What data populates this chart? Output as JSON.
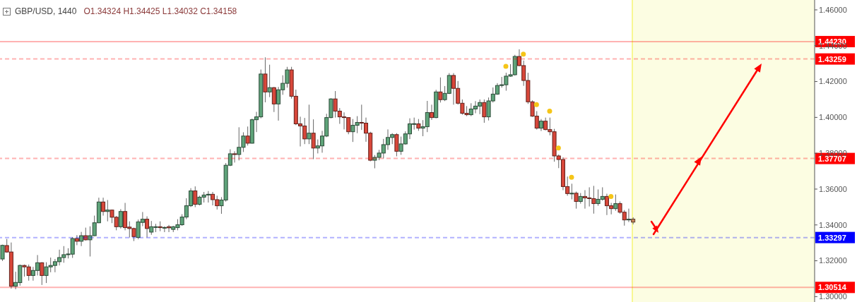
{
  "chart_data": {
    "type": "candlestick",
    "title": "GBP/USD, 1440",
    "subtitle": "O1.34324 H1.34425 L1.34032 C1.34158",
    "categories": [
      null,
      null,
      null,
      null,
      null,
      null,
      null,
      null,
      null,
      null,
      null,
      null,
      null,
      null,
      null,
      null,
      null,
      null,
      null,
      null,
      null,
      null,
      null,
      null,
      null,
      null,
      null,
      null,
      null,
      null,
      null,
      null,
      null,
      null,
      null,
      null,
      null,
      null,
      null,
      null,
      null,
      null,
      null,
      null,
      null,
      null,
      null,
      null,
      null,
      null,
      null,
      null,
      null,
      null,
      null,
      null,
      null,
      null,
      null,
      null,
      null,
      null,
      null,
      null,
      null,
      null,
      null,
      null,
      null,
      null,
      null,
      null,
      null,
      null,
      null,
      null,
      null,
      null,
      null,
      null,
      null,
      null,
      null,
      null,
      null,
      null,
      null,
      null,
      null,
      null,
      null,
      null,
      null,
      null,
      null,
      null,
      null,
      null,
      null,
      null,
      null,
      null,
      null,
      null,
      null,
      null,
      null,
      null,
      null,
      null,
      null,
      null,
      null,
      null,
      null,
      null,
      null,
      null,
      null,
      null,
      null,
      null,
      null,
      null,
      null,
      null,
      null,
      null,
      null,
      null,
      null,
      null,
      null,
      null,
      null,
      null,
      null,
      null,
      null,
      null,
      null,
      null,
      null,
      null,
      null,
      null,
      null,
      null,
      null,
      null,
      null,
      null,
      null,
      null,
      null,
      null,
      null,
      null,
      null,
      null,
      null,
      null,
      null,
      null,
      null,
      null,
      null,
      null,
      null,
      null,
      null,
      null,
      null,
      null,
      null,
      null,
      null,
      null,
      null,
      null,
      null,
      null,
      null,
      null,
      null,
      null
    ],
    "ohlc": [
      [
        1.321,
        1.329,
        1.3199,
        1.3286
      ],
      [
        1.3285,
        1.3322,
        1.3245,
        1.3249
      ],
      [
        1.3249,
        1.3302,
        1.3045,
        1.3058
      ],
      [
        1.3058,
        1.3139,
        1.3041,
        1.3079
      ],
      [
        1.3078,
        1.3179,
        1.3061,
        1.3174
      ],
      [
        1.3174,
        1.3179,
        1.3112,
        1.3166
      ],
      [
        1.3166,
        1.3179,
        1.3089,
        1.3118
      ],
      [
        1.3118,
        1.3166,
        1.3089,
        1.3146
      ],
      [
        1.3146,
        1.3232,
        1.3118,
        1.3189
      ],
      [
        1.3189,
        1.3192,
        1.3065,
        1.3118
      ],
      [
        1.3118,
        1.3192,
        1.3076,
        1.3166
      ],
      [
        1.3166,
        1.3218,
        1.3136,
        1.3174
      ],
      [
        1.3174,
        1.321,
        1.3136,
        1.3195
      ],
      [
        1.3195,
        1.3262,
        1.3174,
        1.3218
      ],
      [
        1.3218,
        1.3282,
        1.3189,
        1.3234
      ],
      [
        1.3234,
        1.327,
        1.3213,
        1.3238
      ],
      [
        1.3237,
        1.3332,
        1.3216,
        1.3324
      ],
      [
        1.3324,
        1.3343,
        1.3287,
        1.3309
      ],
      [
        1.3309,
        1.3361,
        1.3282,
        1.334
      ],
      [
        1.334,
        1.3385,
        1.3313,
        1.3317
      ],
      [
        1.3317,
        1.3392,
        1.3224,
        1.334
      ],
      [
        1.334,
        1.3452,
        1.3338,
        1.3412
      ],
      [
        1.3412,
        1.3552,
        1.341,
        1.3528
      ],
      [
        1.3528,
        1.3552,
        1.3452,
        1.3475
      ],
      [
        1.3475,
        1.3539,
        1.342,
        1.3483
      ],
      [
        1.3483,
        1.3485,
        1.341,
        1.3443
      ],
      [
        1.3443,
        1.345,
        1.337,
        1.339
      ],
      [
        1.339,
        1.3488,
        1.338,
        1.3475
      ],
      [
        1.3475,
        1.3523,
        1.337,
        1.3385
      ],
      [
        1.3388,
        1.342,
        1.333,
        1.338
      ],
      [
        1.338,
        1.3385,
        1.331,
        1.3335
      ],
      [
        1.333,
        1.343,
        1.332,
        1.3417
      ],
      [
        1.3414,
        1.3472,
        1.3393,
        1.3432
      ],
      [
        1.3432,
        1.3448,
        1.333,
        1.338
      ],
      [
        1.336,
        1.3422,
        1.3345,
        1.339
      ],
      [
        1.3386,
        1.3406,
        1.336,
        1.339
      ],
      [
        1.339,
        1.342,
        1.3365,
        1.3385
      ],
      [
        1.3382,
        1.3392,
        1.336,
        1.3386
      ],
      [
        1.339,
        1.34,
        1.336,
        1.3384
      ],
      [
        1.3375,
        1.3395,
        1.336,
        1.339
      ],
      [
        1.3385,
        1.3432,
        1.337,
        1.3401
      ],
      [
        1.3401,
        1.346,
        1.3395,
        1.3444
      ],
      [
        1.3444,
        1.3549,
        1.3432,
        1.3507
      ],
      [
        1.3507,
        1.3605,
        1.35,
        1.359
      ],
      [
        1.359,
        1.3615,
        1.3499,
        1.3515
      ],
      [
        1.3515,
        1.3563,
        1.3509,
        1.3555
      ],
      [
        1.3555,
        1.3584,
        1.3525,
        1.3567
      ],
      [
        1.3567,
        1.3589,
        1.3525,
        1.3571
      ],
      [
        1.3571,
        1.3584,
        1.3509,
        1.3541
      ],
      [
        1.3541,
        1.3563,
        1.3486,
        1.3507
      ],
      [
        1.3507,
        1.3555,
        1.3462,
        1.3539
      ],
      [
        1.3539,
        1.3745,
        1.353,
        1.3733
      ],
      [
        1.3733,
        1.3822,
        1.3728,
        1.3797
      ],
      [
        1.3797,
        1.3811,
        1.3748,
        1.3793
      ],
      [
        1.3793,
        1.3945,
        1.376,
        1.3833
      ],
      [
        1.3833,
        1.3917,
        1.3807,
        1.3896
      ],
      [
        1.3896,
        1.3949,
        1.3843,
        1.3856
      ],
      [
        1.3856,
        1.3993,
        1.3854,
        1.3987
      ],
      [
        1.3987,
        1.4031,
        1.3918,
        1.4003
      ],
      [
        1.4003,
        1.4267,
        1.3995,
        1.4242
      ],
      [
        1.4242,
        1.4335,
        1.4084,
        1.4142
      ],
      [
        1.4142,
        1.4294,
        1.4113,
        1.4166
      ],
      [
        1.4166,
        1.417,
        1.403,
        1.4075
      ],
      [
        1.4075,
        1.417,
        1.3982,
        1.4154
      ],
      [
        1.4154,
        1.4235,
        1.4126,
        1.419
      ],
      [
        1.419,
        1.4282,
        1.4166,
        1.4265
      ],
      [
        1.4265,
        1.4282,
        1.4105,
        1.4118
      ],
      [
        1.4118,
        1.4155,
        1.3957,
        1.3964
      ],
      [
        1.3964,
        1.4004,
        1.3838,
        1.3952
      ],
      [
        1.3952,
        1.3997,
        1.3851,
        1.388
      ],
      [
        1.388,
        1.4071,
        1.3851,
        1.3912
      ],
      [
        1.3912,
        1.3989,
        1.3767,
        1.3829
      ],
      [
        1.3829,
        1.3877,
        1.3799,
        1.3841
      ],
      [
        1.3841,
        1.3925,
        1.3803,
        1.3896
      ],
      [
        1.3896,
        1.402,
        1.389,
        1.3999
      ],
      [
        1.3999,
        1.4107,
        1.3995,
        1.4103
      ],
      [
        1.4103,
        1.4147,
        1.3999,
        1.4035
      ],
      [
        1.4035,
        1.4052,
        1.3964,
        1.4003
      ],
      [
        1.4003,
        1.4028,
        1.3933,
        1.3999
      ],
      [
        1.3999,
        1.4001,
        1.3906,
        1.392
      ],
      [
        1.392,
        1.3991,
        1.3863,
        1.3956
      ],
      [
        1.3956,
        1.4007,
        1.3912,
        1.3972
      ],
      [
        1.3972,
        1.4071,
        1.393,
        1.3968
      ],
      [
        1.3968,
        1.3999,
        1.3864,
        1.3912
      ],
      [
        1.3912,
        1.392,
        1.3755,
        1.3761
      ],
      [
        1.3761,
        1.379,
        1.3716,
        1.3777
      ],
      [
        1.3777,
        1.3819,
        1.3761,
        1.3801
      ],
      [
        1.3801,
        1.388,
        1.3771,
        1.3848
      ],
      [
        1.3848,
        1.3933,
        1.3819,
        1.3888
      ],
      [
        1.3888,
        1.3912,
        1.3851,
        1.3904
      ],
      [
        1.3904,
        1.3912,
        1.3783,
        1.3811
      ],
      [
        1.3811,
        1.3893,
        1.3791,
        1.3852
      ],
      [
        1.3852,
        1.3922,
        1.3848,
        1.3908
      ],
      [
        1.3908,
        1.3995,
        1.3879,
        1.3964
      ],
      [
        1.3962,
        1.3999,
        1.3932,
        1.3965
      ],
      [
        1.3964,
        1.3991,
        1.3925,
        1.394
      ],
      [
        1.394,
        1.3985,
        1.3895,
        1.3948
      ],
      [
        1.3948,
        1.4092,
        1.3918,
        1.4027
      ],
      [
        1.4027,
        1.4071,
        1.3986,
        1.3999
      ],
      [
        1.3999,
        1.4154,
        1.3995,
        1.4142
      ],
      [
        1.4142,
        1.4223,
        1.4083,
        1.4099
      ],
      [
        1.4099,
        1.4175,
        1.4091,
        1.4134
      ],
      [
        1.4134,
        1.4247,
        1.413,
        1.4234
      ],
      [
        1.4234,
        1.4247,
        1.4071,
        1.4162
      ],
      [
        1.4162,
        1.4203,
        1.4071,
        1.4079
      ],
      [
        1.4079,
        1.41,
        1.4015,
        1.4023
      ],
      [
        1.4023,
        1.4063,
        1.4007,
        1.4015
      ],
      [
        1.4015,
        1.4079,
        1.4007,
        1.4047
      ],
      [
        1.4047,
        1.4091,
        1.4023,
        1.4063
      ],
      [
        1.4063,
        1.41,
        1.4018,
        1.4083
      ],
      [
        1.4083,
        1.41,
        1.397,
        1.4003
      ],
      [
        1.4003,
        1.4111,
        1.3983,
        1.4092
      ],
      [
        1.4092,
        1.4167,
        1.4083,
        1.413
      ],
      [
        1.413,
        1.4191,
        1.4126,
        1.4178
      ],
      [
        1.4178,
        1.4226,
        1.4166,
        1.4182
      ],
      [
        1.4182,
        1.4249,
        1.4149,
        1.423
      ],
      [
        1.423,
        1.4297,
        1.4226,
        1.4238
      ],
      [
        1.4238,
        1.4349,
        1.4233,
        1.434
      ],
      [
        1.434,
        1.438,
        1.4285,
        1.4289
      ],
      [
        1.4289,
        1.4317,
        1.4176,
        1.4206
      ],
      [
        1.4206,
        1.4249,
        1.4075,
        1.4087
      ],
      [
        1.4087,
        1.4095,
        1.4003,
        1.4007
      ],
      [
        1.4007,
        1.4035,
        1.3932,
        1.394
      ],
      [
        1.394,
        1.3991,
        1.3924,
        1.3979
      ],
      [
        1.3979,
        1.3999,
        1.3928,
        1.3932
      ],
      [
        1.3932,
        1.3999,
        1.39,
        1.392
      ],
      [
        1.392,
        1.3936,
        1.3753,
        1.3785
      ],
      [
        1.3785,
        1.3793,
        1.3717,
        1.3765
      ],
      [
        1.3765,
        1.3777,
        1.3594,
        1.3614
      ],
      [
        1.3614,
        1.367,
        1.3563,
        1.3575
      ],
      [
        1.3574,
        1.363,
        1.3543,
        1.3577
      ],
      [
        1.3577,
        1.3586,
        1.3491,
        1.3531
      ],
      [
        1.3531,
        1.3578,
        1.3519,
        1.3559
      ],
      [
        1.3559,
        1.3594,
        1.3491,
        1.3551
      ],
      [
        1.3551,
        1.361,
        1.3503,
        1.3547
      ],
      [
        1.3547,
        1.3618,
        1.3463,
        1.3519
      ],
      [
        1.3519,
        1.3598,
        1.3507,
        1.3543
      ],
      [
        1.3543,
        1.361,
        1.3535,
        1.3559
      ],
      [
        1.3559,
        1.3574,
        1.3455,
        1.3507
      ],
      [
        1.3507,
        1.3523,
        1.3459,
        1.3491
      ],
      [
        1.3491,
        1.357,
        1.3479,
        1.3519
      ],
      [
        1.3519,
        1.3531,
        1.3463,
        1.3471
      ],
      [
        1.3471,
        1.3483,
        1.3396,
        1.3428
      ],
      [
        1.3428,
        1.3491,
        1.3416,
        1.3432
      ],
      [
        1.34324,
        1.34425,
        1.34032,
        1.34158
      ],
      null,
      null,
      null,
      null,
      null,
      null,
      null,
      null,
      null,
      null,
      null,
      null,
      null,
      null,
      null,
      null,
      null,
      null,
      null,
      null,
      null,
      null,
      null,
      null,
      null,
      null,
      null,
      null,
      null,
      null,
      null,
      null,
      null,
      null,
      null,
      null,
      null,
      null,
      null,
      null,
      null
    ],
    "colors": [
      "#5fa47a",
      "#d8473a",
      "#d8473a",
      "#5fa47a",
      "#5fa47a",
      "#d8473a",
      "#d8473a",
      "#5fa47a",
      "#5fa47a",
      "#d8473a",
      "#5fa47a",
      "#5fa47a",
      "#5fa47a",
      "#5fa47a",
      "#5fa47a",
      "#5fa47a",
      "#5fa47a",
      "#d8473a",
      "#5fa47a",
      "#d8473a",
      "#5fa47a",
      "#5fa47a",
      "#5fa47a",
      "#d8473a",
      "#5fa47a",
      "#d8473a",
      "#d8473a",
      "#5fa47a",
      "#d8473a",
      "#d8473a",
      "#d8473a",
      "#5fa47a",
      "#5fa47a",
      "#d8473a",
      "#5fa47a",
      "#5fa47a",
      "#d8473a",
      "#5fa47a",
      "#d8473a",
      "#5fa47a",
      "#5fa47a",
      "#5fa47a",
      "#5fa47a",
      "#5fa47a",
      "#d8473a",
      "#5fa47a",
      "#5fa47a",
      "#5fa47a",
      "#d8473a",
      "#d8473a",
      "#5fa47a",
      "#5fa47a",
      "#5fa47a",
      "#d8473a",
      "#5fa47a",
      "#5fa47a",
      "#d8473a",
      "#5fa47a",
      "#5fa47a",
      "#5fa47a",
      "#d8473a",
      "#5fa47a",
      "#d8473a",
      "#5fa47a",
      "#5fa47a",
      "#5fa47a",
      "#d8473a",
      "#d8473a",
      "#d8473a",
      "#d8473a",
      "#5fa47a",
      "#d8473a",
      "#5fa47a",
      "#5fa47a",
      "#5fa47a",
      "#5fa47a",
      "#d8473a",
      "#d8473a",
      "#d8473a",
      "#d8473a",
      "#5fa47a",
      "#5fa47a",
      "#d8473a",
      "#d8473a",
      "#d8473a",
      "#5fa47a",
      "#5fa47a",
      "#5fa47a",
      "#5fa47a",
      "#5fa47a",
      "#d8473a",
      "#5fa47a",
      "#5fa47a",
      "#5fa47a",
      "#5fa47a",
      "#d8473a",
      "#5fa47a",
      "#5fa47a",
      "#d8473a",
      "#5fa47a",
      "#d8473a",
      "#5fa47a",
      "#5fa47a",
      "#d8473a",
      "#d8473a",
      "#d8473a",
      "#d8473a",
      "#5fa47a",
      "#5fa47a",
      "#5fa47a",
      "#d8473a",
      "#5fa47a",
      "#5fa47a",
      "#5fa47a",
      "#5fa47a",
      "#5fa47a",
      "#5fa47a",
      "#5fa47a",
      "#d8473a",
      "#d8473a",
      "#d8473a",
      "#d8473a",
      "#d8473a",
      "#5fa47a",
      "#d8473a",
      "#d8473a",
      "#d8473a",
      "#d8473a",
      "#d8473a",
      "#d8473a",
      "#5fa47a",
      "#d8473a",
      "#5fa47a",
      "#d8473a",
      "#d8473a",
      "#d8473a",
      "#5fa47a",
      "#5fa47a",
      "#d8473a",
      "#d8473a",
      "#5fa47a",
      "#d8473a",
      "#d8473a",
      "#5fa47a",
      "#c8845a",
      null,
      null,
      null,
      null,
      null,
      null,
      null,
      null,
      null,
      null,
      null,
      null,
      null,
      null,
      null,
      null,
      null,
      null,
      null,
      null,
      null,
      null,
      null,
      null,
      null,
      null,
      null,
      null,
      null,
      null,
      null,
      null,
      null,
      null,
      null,
      null,
      null,
      null,
      null,
      null,
      null
    ],
    "series": [
      {
        "type": "scatter",
        "color": "#f5c518",
        "values": [
          null,
          null,
          null,
          null,
          null,
          null,
          null,
          null,
          null,
          null,
          null,
          null,
          null,
          null,
          null,
          null,
          null,
          null,
          null,
          null,
          null,
          null,
          null,
          null,
          null,
          null,
          null,
          null,
          null,
          null,
          null,
          null,
          null,
          null,
          null,
          null,
          null,
          null,
          null,
          null,
          null,
          null,
          null,
          null,
          null,
          null,
          null,
          null,
          null,
          null,
          null,
          null,
          null,
          null,
          null,
          null,
          null,
          null,
          null,
          null,
          null,
          null,
          null,
          null,
          null,
          null,
          null,
          null,
          null,
          null,
          null,
          null,
          null,
          null,
          null,
          null,
          null,
          null,
          null,
          null,
          null,
          null,
          null,
          null,
          null,
          null,
          null,
          null,
          null,
          null,
          null,
          null,
          null,
          null,
          null,
          null,
          null,
          null,
          null,
          null,
          null,
          null,
          null,
          null,
          null,
          null,
          null,
          null,
          null,
          null,
          null,
          null,
          null,
          null,
          null,
          1.4285,
          null,
          null,
          null,
          1.4353,
          null,
          null,
          1.4071,
          null,
          null,
          1.4035,
          null,
          1.3829,
          null,
          null,
          1.3666,
          null,
          null,
          null,
          null,
          null,
          null,
          null,
          null,
          1.3559,
          null,
          null,
          null,
          null,
          null,
          null,
          null,
          null,
          null,
          null,
          null,
          null,
          null,
          null,
          null,
          null,
          null,
          null,
          null,
          null,
          null,
          null,
          null,
          null,
          null,
          null,
          null,
          null,
          null,
          null,
          null,
          null,
          null,
          null,
          null,
          null,
          null,
          null,
          null,
          null,
          null,
          null,
          null,
          null,
          null,
          null
        ]
      }
    ],
    "ylim": [
      1.297,
      1.4655
    ],
    "yticks": [
      {
        "value": 1.3,
        "label": "1.30000"
      },
      {
        "value": 1.32,
        "label": "1.32000"
      },
      {
        "value": 1.34,
        "label": "1.34000"
      },
      {
        "value": 1.36,
        "label": "1.36000"
      },
      {
        "value": 1.38,
        "label": "1.38000"
      },
      {
        "value": 1.4,
        "label": "1.40000"
      },
      {
        "value": 1.42,
        "label": "1.42000"
      },
      {
        "value": 1.44,
        "label": "1.44000"
      },
      {
        "value": 1.46,
        "label": "1.46000"
      }
    ],
    "tick_labels": "y",
    "ref_lines": [
      {
        "axis": "y",
        "value": 1.4423,
        "label": "1.44230",
        "color": "#ff0000",
        "line_style": "solid"
      },
      {
        "axis": "y",
        "value": 1.43259,
        "label": "1.43259",
        "color": "#ff0000",
        "line_style": "dashed"
      },
      {
        "axis": "y",
        "value": 1.37707,
        "label": "1.37707",
        "color": "#ff0000",
        "line_style": "dashed"
      },
      {
        "axis": "y",
        "value": 1.33297,
        "label": "1.33297",
        "color": "#0000ff",
        "line_style": "dashed"
      },
      {
        "axis": "y",
        "value": 1.30514,
        "label": "1.30514",
        "color": "#ff0000",
        "line_style": "solid"
      }
    ]
  }
}
